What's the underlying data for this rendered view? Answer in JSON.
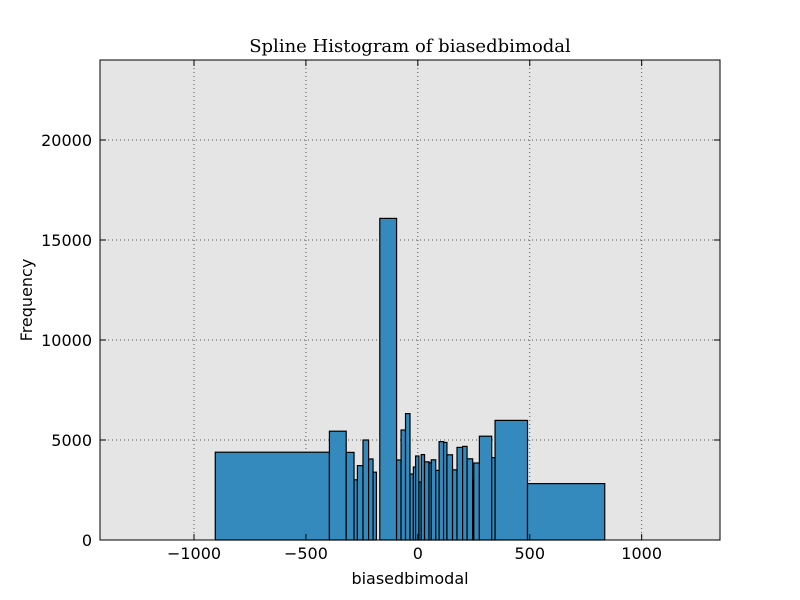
{
  "chart_data": {
    "type": "bar",
    "title": "Spline Histogram of biasedbimodal",
    "xlabel": "biasedbimodal",
    "ylabel": "Frequency",
    "xlim": [
      -1420,
      1350
    ],
    "ylim": [
      0,
      24000
    ],
    "xticks": [
      -1000,
      -500,
      0,
      500,
      1000
    ],
    "yticks": [
      0,
      5000,
      10000,
      15000,
      20000
    ],
    "xtick_labels": [
      "−1000",
      "−500",
      "0",
      "500",
      "1000"
    ],
    "ytick_labels": [
      "0",
      "5000",
      "10000",
      "15000",
      "20000"
    ],
    "grid": true,
    "colors": {
      "bar": "#348ABD",
      "edge": "#000000",
      "plot_bg": "#E5E5E5",
      "grid": "#555555"
    },
    "bins": [
      {
        "x0": -905,
        "x1": -395,
        "y": 4390
      },
      {
        "x0": -395,
        "x1": -320,
        "y": 5440
      },
      {
        "x0": -320,
        "x1": -285,
        "y": 4380
      },
      {
        "x0": -285,
        "x1": -270,
        "y": 3010
      },
      {
        "x0": -270,
        "x1": -245,
        "y": 3720
      },
      {
        "x0": -245,
        "x1": -220,
        "y": 5000
      },
      {
        "x0": -220,
        "x1": -200,
        "y": 4050
      },
      {
        "x0": -200,
        "x1": -185,
        "y": 3390
      },
      {
        "x0": -170,
        "x1": -95,
        "y": 16080
      },
      {
        "x0": -95,
        "x1": -75,
        "y": 4000
      },
      {
        "x0": -75,
        "x1": -55,
        "y": 5500
      },
      {
        "x0": -55,
        "x1": -35,
        "y": 6320
      },
      {
        "x0": -35,
        "x1": -20,
        "y": 3300
      },
      {
        "x0": -20,
        "x1": -10,
        "y": 3650
      },
      {
        "x0": -10,
        "x1": 5,
        "y": 4200
      },
      {
        "x0": 5,
        "x1": 15,
        "y": 2900
      },
      {
        "x0": 15,
        "x1": 30,
        "y": 4270
      },
      {
        "x0": 30,
        "x1": 50,
        "y": 3910
      },
      {
        "x0": 50,
        "x1": 60,
        "y": 3860
      },
      {
        "x0": 60,
        "x1": 80,
        "y": 4010
      },
      {
        "x0": 80,
        "x1": 95,
        "y": 3480
      },
      {
        "x0": 95,
        "x1": 115,
        "y": 4920
      },
      {
        "x0": 115,
        "x1": 130,
        "y": 4880
      },
      {
        "x0": 130,
        "x1": 155,
        "y": 4260
      },
      {
        "x0": 155,
        "x1": 175,
        "y": 3510
      },
      {
        "x0": 175,
        "x1": 200,
        "y": 4630
      },
      {
        "x0": 200,
        "x1": 220,
        "y": 4680
      },
      {
        "x0": 220,
        "x1": 245,
        "y": 4060
      },
      {
        "x0": 245,
        "x1": 250,
        "y": 3010
      },
      {
        "x0": 250,
        "x1": 275,
        "y": 3850
      },
      {
        "x0": 275,
        "x1": 330,
        "y": 5190
      },
      {
        "x0": 330,
        "x1": 345,
        "y": 4120
      },
      {
        "x0": 345,
        "x1": 490,
        "y": 5980
      },
      {
        "x0": 490,
        "x1": 835,
        "y": 2820
      }
    ]
  }
}
